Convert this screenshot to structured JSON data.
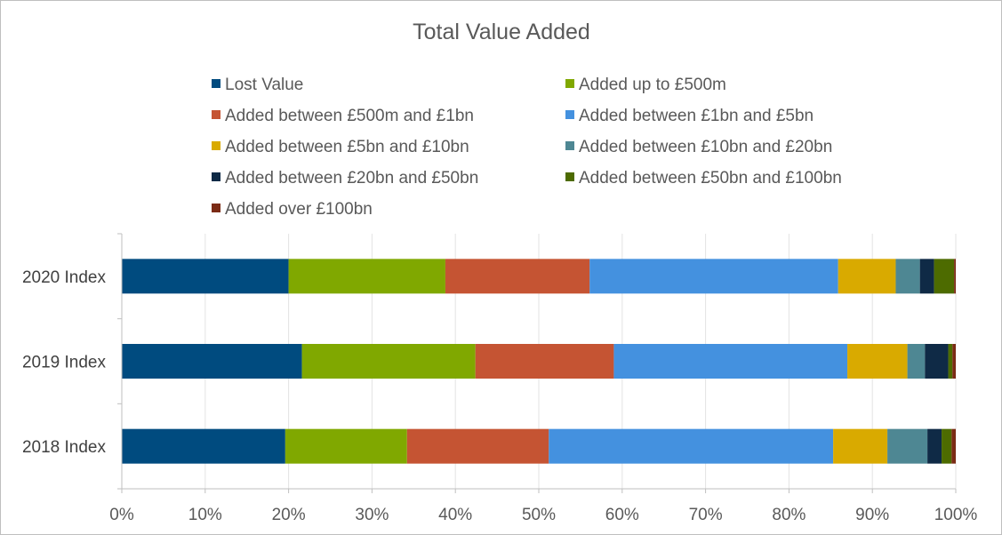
{
  "chart_data": {
    "type": "bar",
    "orientation": "horizontal",
    "stacked": "percent",
    "title": "Total Value Added",
    "xlabel": "",
    "ylabel": "",
    "categories": [
      "2020 Index",
      "2019 Index",
      "2018 Index"
    ],
    "xlim": [
      0,
      100
    ],
    "x_ticks": [
      "0%",
      "10%",
      "20%",
      "30%",
      "40%",
      "50%",
      "60%",
      "70%",
      "80%",
      "90%",
      "100%"
    ],
    "grid": "vertical",
    "legend_position": "top",
    "series": [
      {
        "name": "Lost Value",
        "color": "#004b7f",
        "values": [
          20.0,
          21.6,
          19.6
        ]
      },
      {
        "name": "Added up to £500m",
        "color": "#80a800",
        "values": [
          18.8,
          20.8,
          14.6
        ]
      },
      {
        "name": "Added between £500m and £1bn",
        "color": "#c55433",
        "values": [
          17.3,
          16.6,
          17.0
        ]
      },
      {
        "name": "Added between £1bn and £5bn",
        "color": "#4491df",
        "values": [
          29.8,
          28.0,
          34.1
        ]
      },
      {
        "name": "Added between £5bn and £10bn",
        "color": "#d9aa00",
        "values": [
          6.9,
          7.2,
          6.5
        ]
      },
      {
        "name": "Added between £10bn and £20bn",
        "color": "#4e8793",
        "values": [
          2.9,
          2.1,
          4.8
        ]
      },
      {
        "name": "Added between £20bn and £50bn",
        "color": "#0f2a46",
        "values": [
          1.7,
          2.8,
          1.7
        ]
      },
      {
        "name": "Added between £50bn and £100bn",
        "color": "#4d6b00",
        "values": [
          2.4,
          0.5,
          1.2
        ]
      },
      {
        "name": "Added over £100bn",
        "color": "#7b2b15",
        "values": [
          0.2,
          0.4,
          0.5
        ]
      }
    ]
  }
}
